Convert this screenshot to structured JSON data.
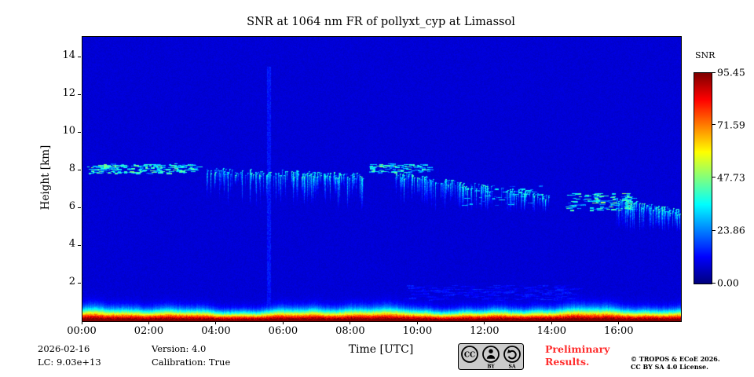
{
  "title": "SNR at 1064 nm FR of pollyxt_cyp at Limassol",
  "axes": {
    "xlabel": "Time [UTC]",
    "ylabel": "Height [km]",
    "x_ticks": [
      "00:00",
      "02:00",
      "04:00",
      "06:00",
      "08:00",
      "10:00",
      "12:00",
      "14:00",
      "16:00"
    ],
    "x_tick_hours": [
      0,
      2,
      4,
      6,
      8,
      10,
      12,
      14,
      16
    ],
    "y_ticks": [
      "2",
      "4",
      "6",
      "8",
      "10",
      "12",
      "14"
    ],
    "y_tick_km": [
      2,
      4,
      6,
      8,
      10,
      12,
      14
    ]
  },
  "colorbar": {
    "label": "SNR",
    "tick_labels": [
      "95.45",
      "71.59",
      "47.73",
      "23.86",
      "0.00"
    ],
    "tick_values": [
      95.45,
      71.59,
      47.73,
      23.86,
      0.0
    ]
  },
  "footer": {
    "date": "2026-02-16",
    "lc": "LC: 9.03e+13",
    "version": "Version: 4.0",
    "calibration": "Calibration: True",
    "preliminary": [
      "Preliminary",
      "Results."
    ],
    "copyright": [
      "© TROPOS & ECoE 2026.",
      "CC BY SA 4.0 License."
    ],
    "badge": {
      "cc": "CC",
      "by": "BY",
      "sa": "SA"
    }
  },
  "chart_data": {
    "type": "heatmap",
    "title": "SNR at 1064 nm FR of pollyxt_cyp at Limassol",
    "xlabel": "Time [UTC]",
    "ylabel": "Height [km]",
    "colorbar_label": "SNR",
    "colormap": "jet",
    "x_range_hours": [
      0,
      17.83
    ],
    "y_range_km": [
      0,
      15.1
    ],
    "value_range": [
      0,
      95.45
    ],
    "background_value": 8,
    "surface_layer": {
      "description": "strong near-surface SNR layer, red at ground fading through orange/yellow/green/cyan to blue by ~1.3 km",
      "scale_km": 0.5,
      "peak_value": 95.45
    },
    "features": [
      {
        "type": "band",
        "t": [
          0.15,
          3.4
        ],
        "h": [
          7.85,
          8.35
        ],
        "intensity": 32,
        "density": 1.6,
        "note": "thin cirrus dashes near 8 km"
      },
      {
        "type": "streaks",
        "t": [
          3.7,
          8.4
        ],
        "h": [
          5.7,
          8.0
        ],
        "intensity": 27,
        "density": 1.1,
        "slope": -0.3,
        "note": "virga fall streaks 6-8 km"
      },
      {
        "type": "band",
        "t": [
          8.5,
          10.4
        ],
        "h": [
          7.9,
          8.35
        ],
        "intensity": 31,
        "density": 1.2,
        "note": "cloud base dashes near 8 km"
      },
      {
        "type": "streaks",
        "t": [
          9.3,
          13.9
        ],
        "h": [
          5.8,
          7.8
        ],
        "intensity": 27,
        "density": 1.0,
        "slope": -1.2,
        "note": "descending streaks 6-7.8 km"
      },
      {
        "type": "band",
        "t": [
          11.3,
          13.6
        ],
        "h": [
          6.1,
          7.2
        ],
        "intensity": 26,
        "density": 0.5,
        "note": "scattered specks"
      },
      {
        "type": "band",
        "t": [
          14.4,
          16.4
        ],
        "h": [
          5.9,
          6.8
        ],
        "intensity": 33,
        "density": 1.5,
        "note": "denser cyan clump near 6.3 km"
      },
      {
        "type": "streaks",
        "t": [
          15.9,
          17.8
        ],
        "h": [
          4.8,
          6.4
        ],
        "intensity": 28,
        "density": 1.6,
        "slope": -0.6,
        "note": "streaks sinking to ~5 km at day end"
      },
      {
        "type": "column",
        "t": [
          5.5,
          5.58
        ],
        "h": [
          0,
          13.5
        ],
        "intensity": 14,
        "note": "faint vertical artifact ~05:30"
      },
      {
        "type": "band",
        "t": [
          9.6,
          14.6
        ],
        "h": [
          1.15,
          1.9
        ],
        "intensity": 12,
        "density": 1.2,
        "soft": true,
        "note": "faint lofted aerosol above boundary layer"
      }
    ]
  }
}
